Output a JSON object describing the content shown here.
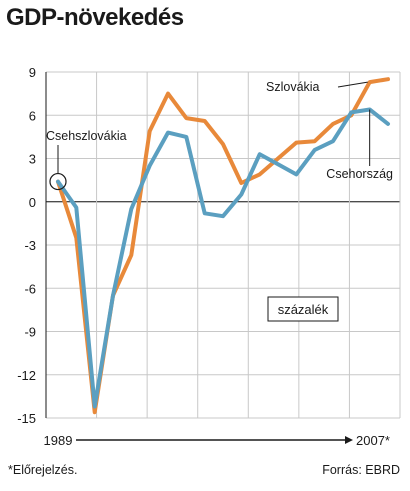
{
  "chart_data": {
    "type": "line",
    "title": "GDP-növekedés",
    "unit_label": "százalék",
    "ylim": [
      -15,
      9
    ],
    "yticks": [
      9,
      6,
      3,
      0,
      -3,
      -6,
      -9,
      -12,
      -15
    ],
    "x": [
      1989,
      1990,
      1991,
      1992,
      1993,
      1994,
      1995,
      1996,
      1997,
      1998,
      1999,
      2000,
      2001,
      2002,
      2003,
      2004,
      2005,
      2006,
      2007
    ],
    "x_start_label": "1989",
    "x_end_label": "2007*",
    "grid": true,
    "series": [
      {
        "name": "Szlovákia",
        "color": "#e8893a",
        "values": [
          1.4,
          -2.5,
          -14.6,
          -6.5,
          -3.7,
          4.9,
          7.5,
          5.8,
          5.6,
          4.0,
          1.3,
          1.9,
          3.0,
          4.1,
          4.2,
          5.4,
          6.0,
          8.3,
          8.5
        ]
      },
      {
        "name": "Csehország",
        "color": "#5b9fc0",
        "values": [
          1.4,
          -0.4,
          -14.2,
          -6.5,
          -0.5,
          2.5,
          4.8,
          4.5,
          -0.8,
          -1.0,
          0.5,
          3.3,
          2.6,
          1.9,
          3.6,
          4.2,
          6.2,
          6.4,
          5.4
        ]
      }
    ],
    "annotations": {
      "start_label": "Csehszlovákia"
    }
  },
  "footer": {
    "note": "*Előrejelzés.",
    "source": "Forrás: EBRD"
  }
}
